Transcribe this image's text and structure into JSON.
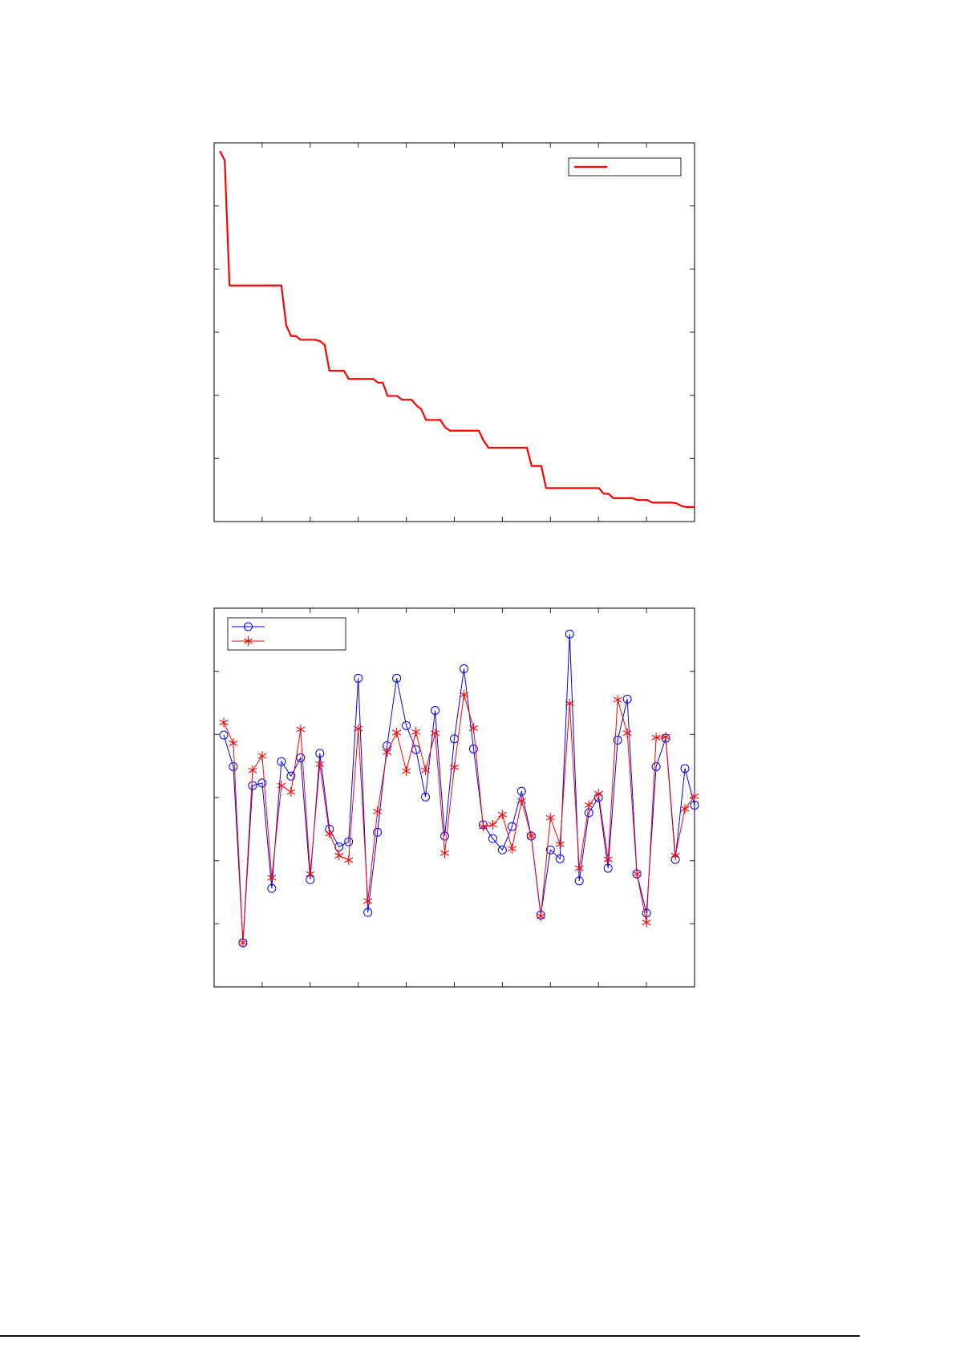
{
  "colors": {
    "red": "#ff0000",
    "blue": "#0000ff",
    "axes": "#262626"
  },
  "chart_data": [
    {
      "type": "line",
      "title": "",
      "xlabel": "",
      "ylabel": "",
      "xlim": [
        0,
        10
      ],
      "ylim": [
        0,
        6
      ],
      "xticks_count": 10,
      "yticks_count": 6,
      "tick_labels_shown": false,
      "grid": false,
      "legend": {
        "placement": "top-right",
        "entries": [
          ""
        ]
      },
      "series": [
        {
          "color": "#ff0000",
          "marker": "none",
          "x": [
            0.12,
            0.22,
            0.32,
            1.4,
            1.5,
            1.6,
            1.7,
            1.8,
            2.1,
            2.2,
            2.3,
            2.4,
            2.7,
            2.8,
            3.31,
            3.41,
            3.51,
            3.61,
            3.81,
            3.91,
            4.11,
            4.21,
            4.31,
            4.41,
            4.71,
            4.81,
            4.91,
            5.51,
            5.61,
            5.71,
            6.51,
            6.61,
            6.81,
            6.91,
            8.01,
            8.11,
            8.21,
            8.31,
            8.71,
            8.81,
            9.02,
            9.12,
            9.52,
            9.62,
            9.72,
            9.82,
            10.0
          ],
          "y": [
            5.87,
            5.72,
            3.74,
            3.74,
            3.11,
            2.94,
            2.94,
            2.88,
            2.88,
            2.86,
            2.8,
            2.39,
            2.39,
            2.26,
            2.26,
            2.2,
            2.2,
            1.99,
            1.99,
            1.93,
            1.93,
            1.84,
            1.78,
            1.61,
            1.61,
            1.49,
            1.44,
            1.44,
            1.28,
            1.17,
            1.17,
            0.88,
            0.88,
            0.53,
            0.53,
            0.44,
            0.44,
            0.37,
            0.37,
            0.34,
            0.34,
            0.3,
            0.3,
            0.29,
            0.25,
            0.23,
            0.23
          ]
        }
      ]
    },
    {
      "type": "line",
      "title": "",
      "xlabel": "",
      "ylabel": "",
      "xlim": [
        0,
        10
      ],
      "ylim": [
        0,
        6
      ],
      "xticks_count": 10,
      "yticks_count": 6,
      "tick_labels_shown": false,
      "grid": false,
      "legend": {
        "placement": "top-left",
        "entries": [
          "",
          ""
        ]
      },
      "x": [
        0.2,
        0.4,
        0.6,
        0.8,
        1.0,
        1.2,
        1.4,
        1.6,
        1.8,
        2.0,
        2.2,
        2.4,
        2.6,
        2.8,
        3.0,
        3.2,
        3.4,
        3.6,
        3.8,
        4.0,
        4.2,
        4.4,
        4.6,
        4.8,
        5.0,
        5.2,
        5.4,
        5.6,
        5.8,
        6.0,
        6.2,
        6.4,
        6.6,
        6.8,
        7.0,
        7.2,
        7.4,
        7.6,
        7.8,
        8.0,
        8.2,
        8.4,
        8.6,
        8.8,
        9.0,
        9.2,
        9.4,
        9.6,
        9.8,
        10.0
      ],
      "series": [
        {
          "color": "#0000ff",
          "marker": "circle",
          "values": [
            3.99,
            3.49,
            0.7,
            3.19,
            3.23,
            1.56,
            3.57,
            3.34,
            3.63,
            1.7,
            3.7,
            2.5,
            2.22,
            2.3,
            4.89,
            1.18,
            2.45,
            3.82,
            4.89,
            4.14,
            3.76,
            3.01,
            4.38,
            2.39,
            3.93,
            5.04,
            3.77,
            2.57,
            2.35,
            2.17,
            2.54,
            3.1,
            2.39,
            1.14,
            2.17,
            2.03,
            5.59,
            1.68,
            2.76,
            3.0,
            1.88,
            3.91,
            4.56,
            1.79,
            1.17,
            3.49,
            3.94,
            2.02,
            3.46,
            2.88
          ]
        },
        {
          "color": "#ff0000",
          "marker": "asterisk",
          "values": [
            4.19,
            3.86,
            0.7,
            3.43,
            3.66,
            1.73,
            3.19,
            3.09,
            4.08,
            1.79,
            3.53,
            2.43,
            2.08,
            2.01,
            4.09,
            1.36,
            2.78,
            3.72,
            4.03,
            3.42,
            4.04,
            3.43,
            4.02,
            2.12,
            3.48,
            4.63,
            4.1,
            2.54,
            2.57,
            2.73,
            2.19,
            2.95,
            2.39,
            1.12,
            2.68,
            2.26,
            4.49,
            1.88,
            2.88,
            3.06,
            2.02,
            4.55,
            4.02,
            1.79,
            1.02,
            3.95,
            3.96,
            2.08,
            2.82,
            3.02
          ]
        }
      ]
    }
  ]
}
